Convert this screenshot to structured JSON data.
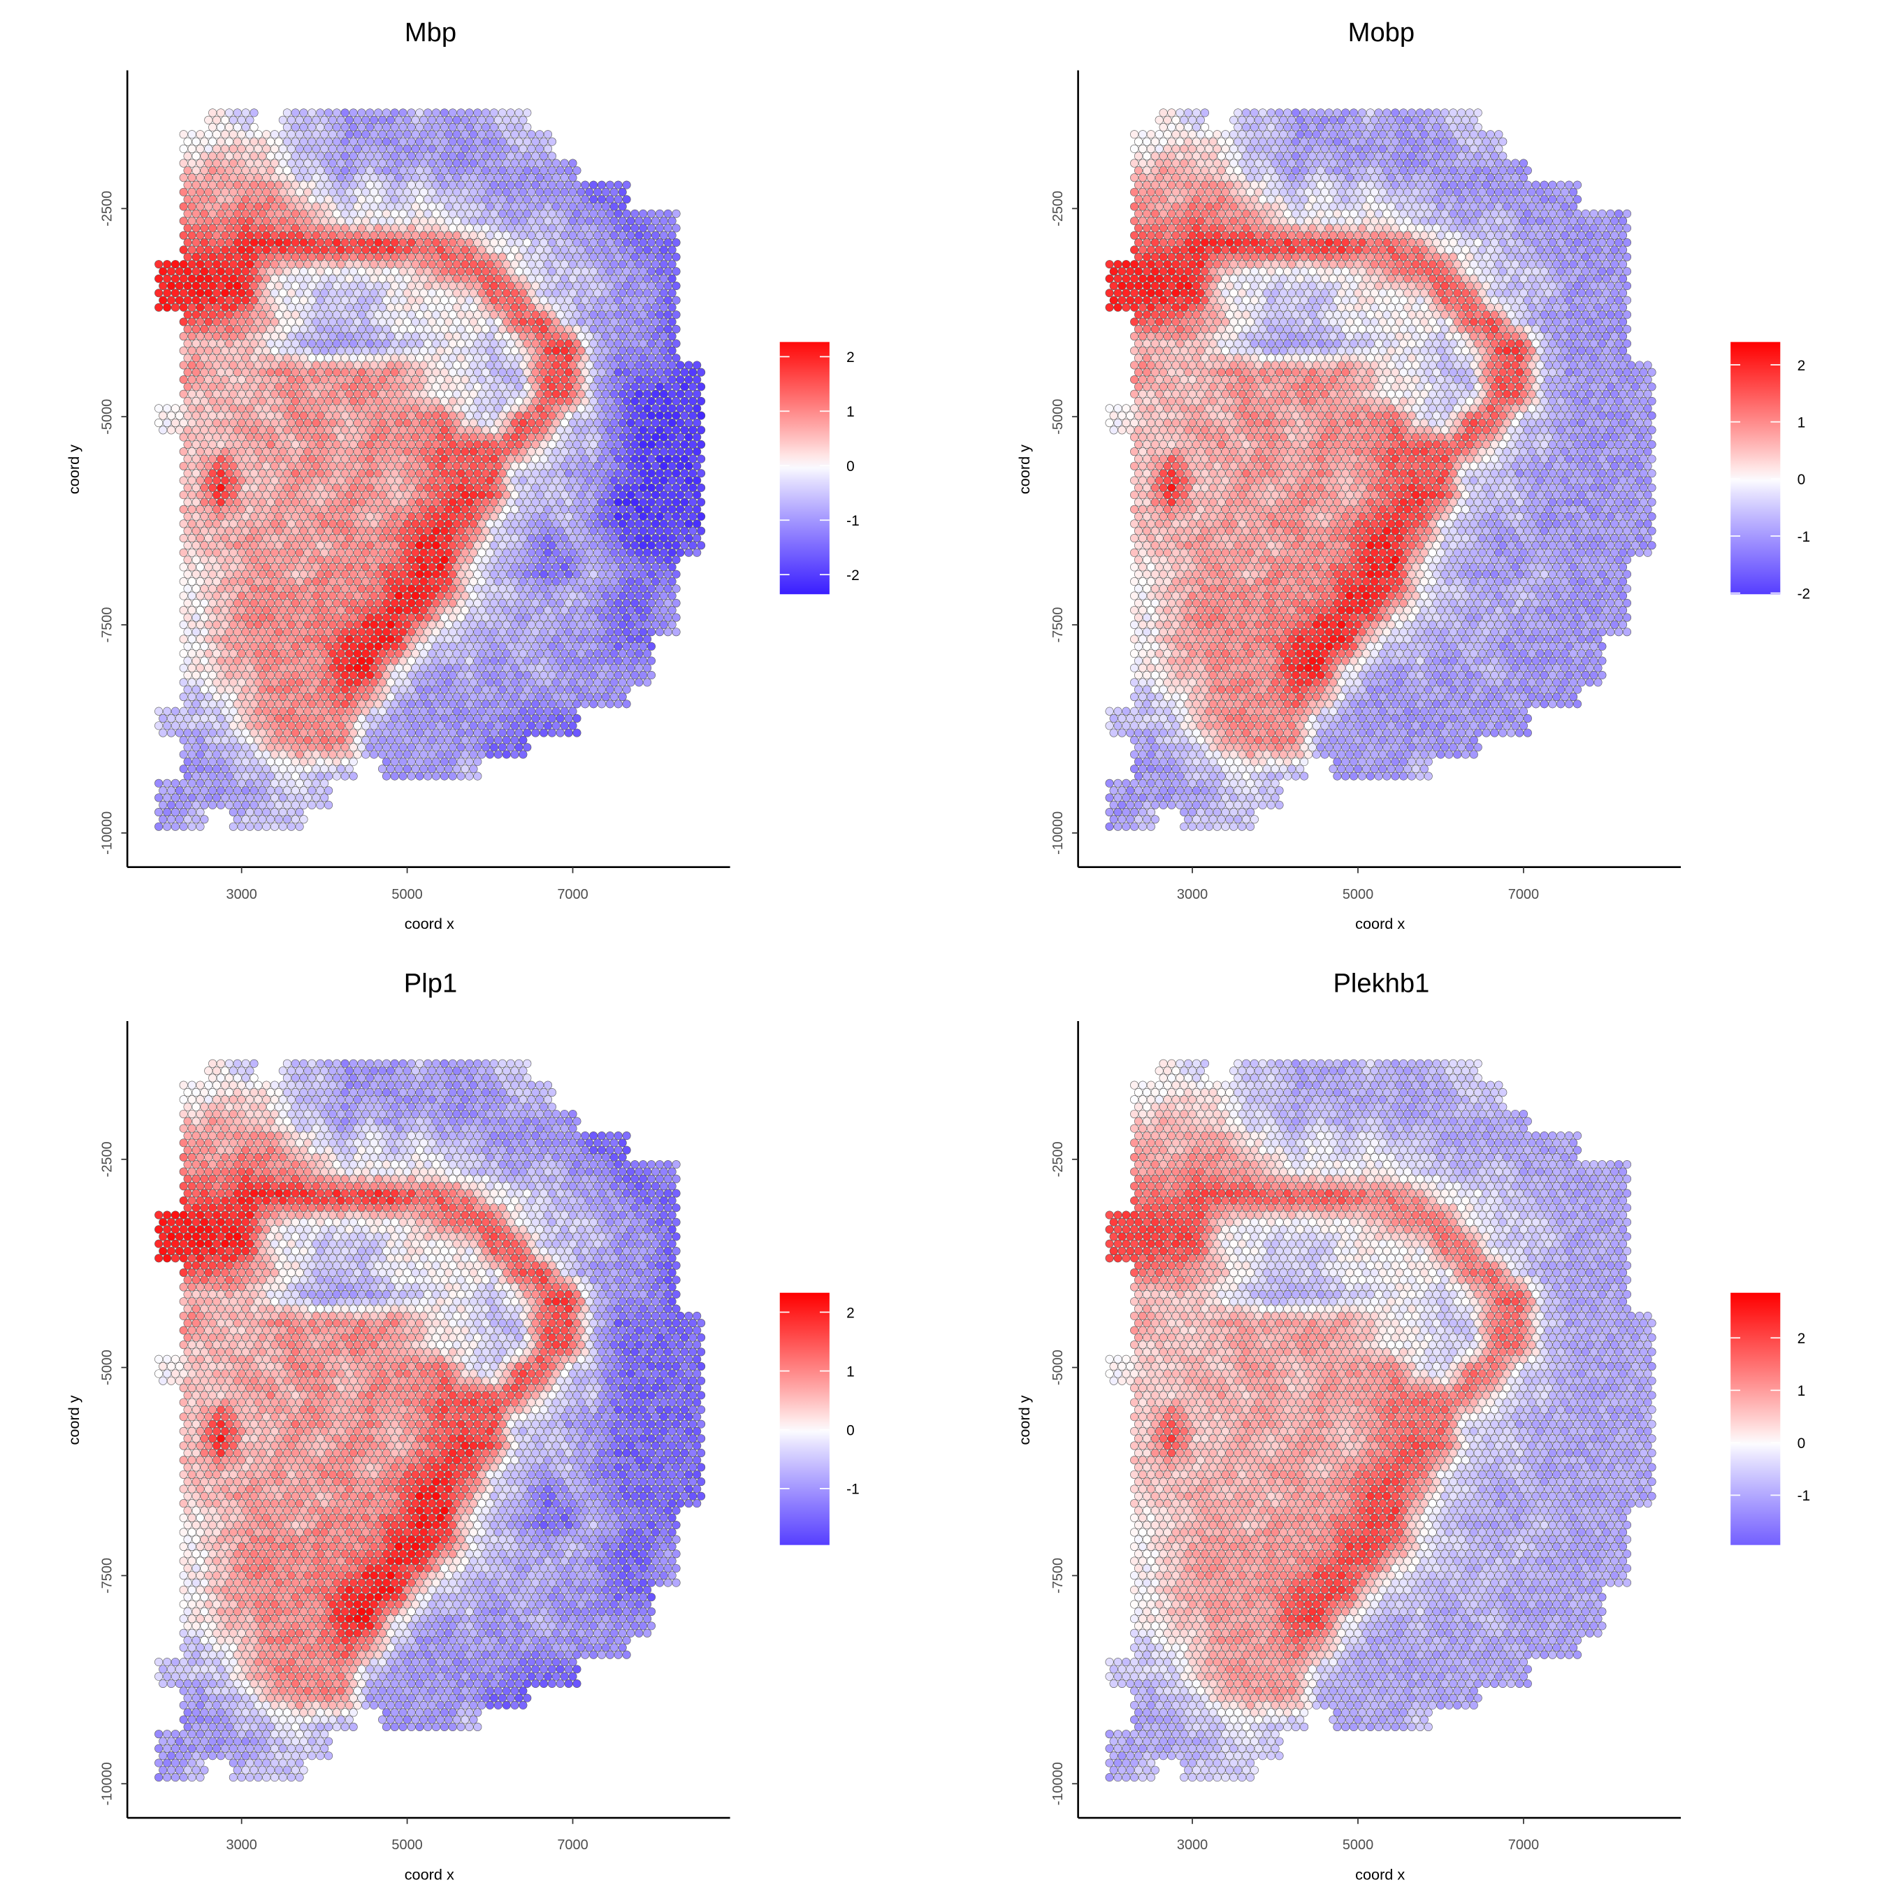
{
  "chart_data": {
    "type": "scatter",
    "xlabel": "coord x",
    "ylabel": "coord y",
    "xticks": [
      3000,
      5000,
      7000
    ],
    "yticks": [
      -2500,
      -5000,
      -7500,
      -10000
    ],
    "xlim": [
      1620,
      8900
    ],
    "ylim": [
      -10410,
      -840
    ],
    "grid": false,
    "legend_placement": "right",
    "colors": {
      "low": "#3a1eff",
      "mid": "#ffffff",
      "high": "#ff0000",
      "spot_outline": "#555555"
    },
    "value_codes": {
      "A": -2,
      "B": -1.5,
      "C": -1,
      "D": -0.5,
      "E": 0,
      "F": 0.5,
      "G": 1,
      "H": 1.5,
      "I": 2
    },
    "value_grid_origin": {
      "x": 2000,
      "y": -1300,
      "cell": 300
    },
    "panels": [
      {
        "title": "Mbp",
        "legend": {
          "min": -2.36,
          "max": 2.27,
          "breaks": [
            2,
            1,
            0,
            -1,
            -2
          ],
          "labels": [
            "2",
            "1",
            "0",
            "-1",
            "-2"
          ]
        },
        "grid": [
          "..ED.DDCCCDCCDD.......",
          ".EEFEDDCCCCCCCDD......",
          ".FGFFDDCDCDCCCCCC.....",
          ".GFGGFEDEDEDDCCCCBB...",
          ".GGHGGFEEEEEDDCDCCBBC.",
          ".HHIIIIIIIHHGEEDDCCBB.",
          "IIIIFEEEEEFGHHEDDDCCB.",
          "IIIIEEDDDEEEEHHDDDCCB.",
          ".HHGFEDDDEEEEEHHDCCCB.",
          ".FFFEDCCCDDEEDEHIDCCB.",
          ".GFFGGGGGGFEEDDHHDBBBA",
          ".FFFFGFGGFFEEDDHHDBAAA",
          "EFFGFGGFGGGHEDHHDDBAAA",
          ".FFFGFGFGGGHHHHEDDBAAA",
          ".FIFFGGFGFGHHHDDCCBAAA",
          ".FIFFGFGGFGHIHDDDCAAAA",
          ".FFFGFGGFGHIHEDCDCAAAA",
          ".FFGFGFGGGIIGDDBCCBAAB",
          ".EFFGFGGGHIIEDCBBDCBB.",
          ".EFGGGGGGIIHEDDCDCBBC.",
          ".EFGGGGGIIHEDDCDCCBBC.",
          ".EFGGGGIIIEDDCDCCCBB..",
          ".EFFGGGIIEDCDCCDCCCC..",
          ".DEFGGGHGDCCCCCCCCC...",
          "DDDFGGGGDCCCCCBBB.....",
          ".CDDFGGGCCCCCBB.......",
          ".CCDDEDD.CCCD.........",
          "CCCCDDD...............",
          "CD.DDD................"
        ]
      },
      {
        "title": "Mobp",
        "legend": {
          "min": -2.02,
          "max": 2.4,
          "breaks": [
            2,
            1,
            0,
            -1,
            -2
          ],
          "labels": [
            "2",
            "1",
            "0",
            "-1",
            "-2"
          ]
        },
        "grid": [
          "..ED.DDCCCDCCDD.......",
          ".EEFEDDCCCCCCCDD......",
          ".FGFFDDCDCDCCCCCC.....",
          ".GFGGFEDEDEDDCCCCCC...",
          ".GGHGGFEEEEEDDCDCCCCC.",
          ".HHIIIIIIIHHGEEDDCCCC.",
          "IIIIFEEEEEFGHHEDDDCCC.",
          "IIIIEEDDDEEEEHHDDDCCC.",
          ".HHGFEDDDEEEEEHHDCCCC.",
          ".FFFEDCCCDDEEDEHIDCCC.",
          ".GFFGGGGGGFEEDDHHDCCCC",
          ".FFFFGFGGFFEEDDHHDCCCC",
          "EFFGFGGFGGGHEDHHDDCCCC",
          ".FFFGFGFGGGHHHHEDDCCCC",
          ".FIFFGGFGFGHHHDDCCCCCC",
          ".FIFFGFGGFGHIHDDDCCCCC",
          ".FFFGFGGFGHIHEDCDCCCCC",
          ".FFGFGFGGGIIGDDCCCCCCC",
          ".EFFGFGGGHIIEDCCCDCCC.",
          ".EFGGGGGGIIHEDDCDCCCC.",
          ".EFGGGGGIIHEDDCDCCCCC.",
          ".EFGGGGIIIEDDCDCCCCC..",
          ".EFFGGGIIEDCDCCDCCCC..",
          ".DEFGGGHGDCCCCCCCCC...",
          "DDDFGGGGDCCCCCCCC.....",
          ".CDDFGGGCCCCCCC.......",
          ".CCDDEDD.CCCD.........",
          "CCCCDDD...............",
          "CD.DDD................"
        ]
      },
      {
        "title": "Plp1",
        "legend": {
          "min": -1.96,
          "max": 2.33,
          "breaks": [
            2,
            1,
            0,
            -1
          ],
          "labels": [
            "2",
            "1",
            "0",
            "-1"
          ]
        },
        "grid": [
          "..ED.DDCCCDCCDD.......",
          ".EEFEDDCCCCCCCDD......",
          ".FGFFDDCDCDCCCCCC.....",
          ".GFGGFEDEDEDDCCCCBB...",
          ".GGHGGFEEEEEDDCDCCBBC.",
          ".HHIIIIIIIHHGEEDDCCBB.",
          "IIIIFEEEEEFGHHEDDDCCB.",
          "IIIIEEDDDEEEEHHDDDCCB.",
          ".HHGFEDDDEEEEEHHDCCCB.",
          ".FFFEDCCCDDEEDEHIDCCB.",
          ".GFFGGGGGGFEEDDHHDBBBB",
          ".FFFFGFGGFFEEDDHHDBBBB",
          "EFFGFGGFGGGHEDHHDDBBBB",
          ".FFFGFGFGGGHHHHEDDBBBB",
          ".FIFFGGFGFGHHHDDCCBBBB",
          ".FIFFGFGGFGHIHDDDCBBBB",
          ".FFFGFGGFGHIHEDCDCBBBB",
          ".FFGFGFGGGIIGDDBCCBBBB",
          ".EFFGFGGGHIIEDCBBDCBB.",
          ".EFGGGGGGIIHEDDCDCBBC.",
          ".EFGGGGGIIHEDDCDCCBBC.",
          ".EFGGGGIIIEDDCDCCCBB..",
          ".EFFGGGIIEDCDCCDCCCC..",
          ".DEFGGGHGDCCCCCCCCC...",
          "DDDFGGGGDCCCCCBBB.....",
          ".CDDFGGGCCCCCBB.......",
          ".CCDDEDD.CCCD.........",
          "CCCCDDD...............",
          "CD.DDD................"
        ]
      },
      {
        "title": "Plekhb1",
        "legend": {
          "min": -1.95,
          "max": 2.86,
          "breaks": [
            2,
            1,
            0,
            -1
          ],
          "labels": [
            "2",
            "1",
            "0",
            "-1"
          ]
        },
        "grid": [
          "..ED.DDCCCDCCDD.......",
          ".EEFEDDCCCCCCCDD......",
          ".FGFFDDCDCDCCCCCC.....",
          ".GFGGFEDEDEDDCCCCCC...",
          ".GGHGGFEEEEEDDCDCCCCC.",
          ".HHIIIIIIIHHGEEDDCCCC.",
          "IIIIFEEEEEFGHHEDDDCCC.",
          "IIIIEEDDDEEEEHHDDDCCC.",
          ".HHGFEDDDEEEEEHHDCCCC.",
          ".FFFEDCCCDDEEDEHIDCCC.",
          ".GFFGGGGGGFEEDDHHDCCCC",
          ".FFFFGFGGFFEEDDHHDCCCC",
          "EFFGFGGFGGGHEDHHDDCCCC",
          ".FFFGFGFGGGHHHHEDDCCCC",
          ".FIFFGGFGFGHHHDDCCCCCC",
          ".FIFFGFGGFGHIHDDDCCCCC",
          ".FFFGFGGFGHIHEDCDCCCCC",
          ".FFGFGFGGGIIGDDCCCCCCC",
          ".EFFGFGGGHIIEDCCCDCCC.",
          ".EFGGGGGGIIHEDDCDCCCC.",
          ".EFGGGGGIIHEDDCDCCCCC.",
          ".EFGGGGIIIEDDCDCCCCC..",
          ".EFFGGGIIEDCDCCDCCCC..",
          ".DEFGGGHGDCCCCCCCCC...",
          "DDDFGGGGDCCCCCCCC.....",
          ".CDDFGGGCCCCCCC.......",
          ".CCDDEDD.CCCD.........",
          "CCCCDDD...............",
          "CD.DDD................"
        ]
      }
    ]
  }
}
